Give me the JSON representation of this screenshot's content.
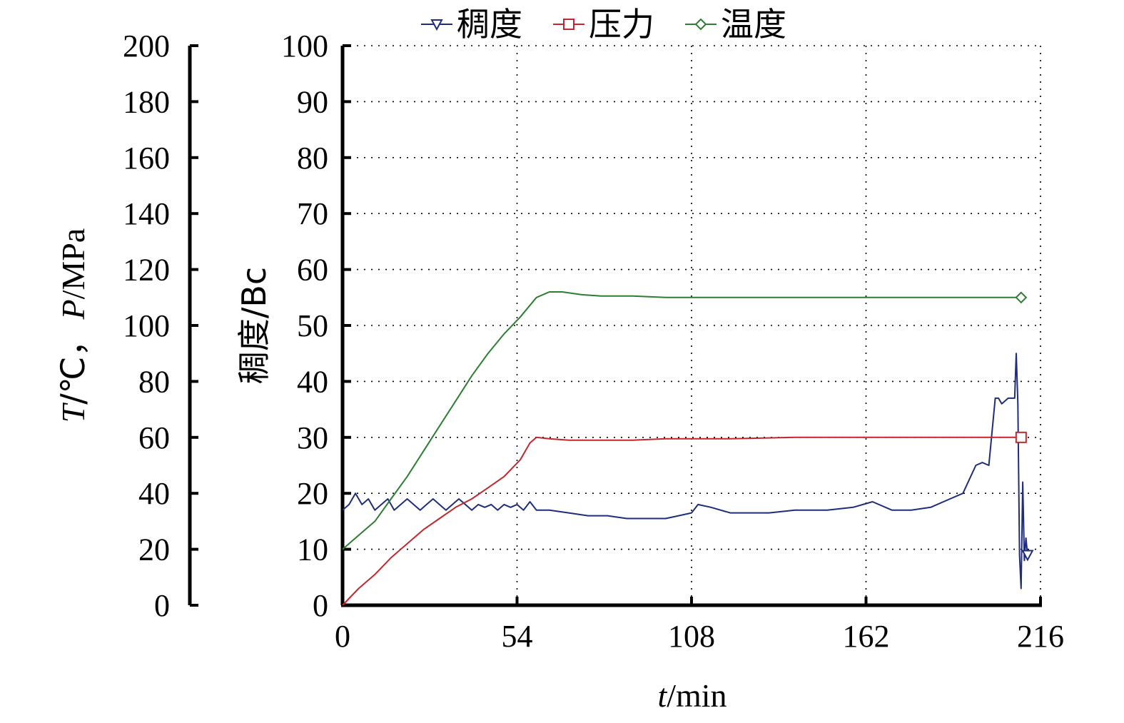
{
  "chart_data": {
    "type": "line",
    "title": "",
    "legend": {
      "placement": "top",
      "items": [
        {
          "label": "稠度",
          "marker": "triangle-down",
          "color": "#1f2d7a"
        },
        {
          "label": "压力",
          "marker": "square",
          "color": "#c0282d"
        },
        {
          "label": "温度",
          "marker": "diamond",
          "color": "#2e7d32"
        }
      ]
    },
    "x_axis": {
      "label_italic": "t",
      "label_rest": "/min",
      "range": [
        0,
        216
      ],
      "ticks": [
        0,
        54,
        108,
        162,
        216
      ],
      "grid": true
    },
    "y_axis_right_inner": {
      "label": "稠度/Bc",
      "range": [
        0,
        100
      ],
      "ticks": [
        0,
        10,
        20,
        30,
        40,
        50,
        60,
        70,
        80,
        90,
        100
      ],
      "grid": true
    },
    "y_axis_left_outer": {
      "label_t": "T",
      "label_t_rest": "/℃，",
      "label_p": "P",
      "label_p_rest": "/MPa",
      "range": [
        0,
        200
      ],
      "ticks": [
        0,
        20,
        40,
        60,
        80,
        100,
        120,
        140,
        160,
        180,
        200
      ]
    },
    "series": [
      {
        "name": "稠度",
        "axis": "consistency",
        "color": "#1f2d7a",
        "x": [
          0,
          2,
          4,
          6,
          8,
          10,
          12,
          14,
          16,
          18,
          20,
          22,
          24,
          26,
          28,
          30,
          32,
          34,
          36,
          38,
          40,
          42,
          44,
          46,
          48,
          50,
          52,
          54,
          56,
          58,
          60,
          64,
          70,
          76,
          82,
          88,
          94,
          100,
          104,
          108,
          110,
          114,
          120,
          126,
          132,
          140,
          150,
          158,
          164,
          170,
          176,
          182,
          188,
          192,
          196,
          198,
          200,
          202,
          203,
          204,
          206,
          208,
          208.5,
          209,
          209.5,
          210,
          210.5,
          211,
          211.5,
          212
        ],
        "y": [
          17,
          18,
          20,
          18,
          19,
          17,
          18,
          19,
          17,
          18,
          19,
          18,
          17,
          18,
          19,
          18,
          17,
          18,
          19,
          18,
          17,
          18,
          17.5,
          18,
          17,
          18,
          17.5,
          18,
          17,
          18.5,
          17,
          17,
          16.5,
          16,
          16,
          15.5,
          15.5,
          15.5,
          16,
          16.5,
          18,
          17.5,
          16.5,
          16.5,
          16.5,
          17,
          17,
          17.5,
          18.5,
          17,
          17,
          17.5,
          19,
          20,
          25,
          25.5,
          25,
          37,
          37,
          36,
          37,
          37,
          45,
          36,
          9,
          3,
          22,
          8,
          12,
          9
        ]
      },
      {
        "name": "压力",
        "axis": "tp",
        "color": "#c0282d",
        "x": [
          0,
          5,
          10,
          15,
          20,
          25,
          30,
          35,
          40,
          45,
          50,
          55,
          58,
          60,
          64,
          70,
          80,
          90,
          100,
          110,
          120,
          140,
          160,
          180,
          200,
          210
        ],
        "y": [
          0,
          6,
          11,
          17,
          22,
          27,
          31,
          35,
          38,
          42,
          46,
          52,
          58,
          60,
          59.5,
          59,
          59,
          59,
          59.5,
          59.5,
          59.5,
          60,
          60,
          60,
          60,
          60
        ]
      },
      {
        "name": "温度",
        "axis": "tp",
        "color": "#2e7d32",
        "x": [
          0,
          5,
          10,
          15,
          20,
          25,
          30,
          35,
          40,
          45,
          50,
          55,
          60,
          64,
          68,
          74,
          80,
          90,
          100,
          120,
          150,
          180,
          210
        ],
        "y": [
          20,
          25,
          30,
          38,
          46,
          55,
          64,
          73,
          82,
          90,
          97,
          103,
          110,
          112,
          112,
          111,
          110.5,
          110.5,
          110,
          110,
          110,
          110,
          110
        ]
      }
    ]
  }
}
